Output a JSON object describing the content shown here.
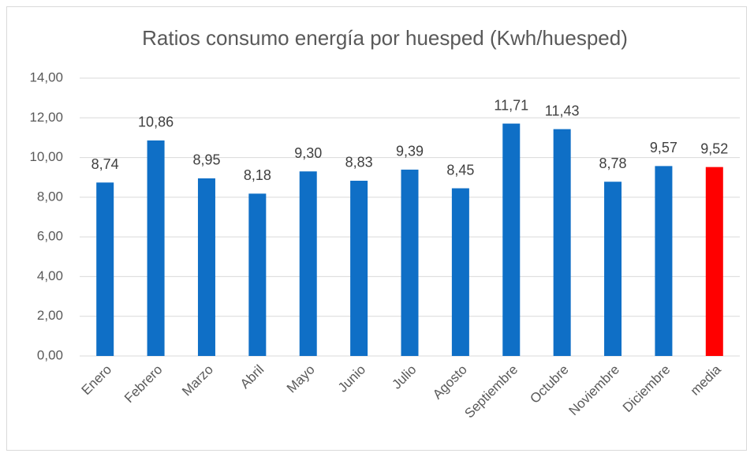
{
  "chart_data": {
    "type": "bar",
    "title": "Ratios consumo energía por huesped (Kwh/huesped)",
    "categories": [
      "Enero",
      "Febrero",
      "Marzo",
      "Abril",
      "Mayo",
      "Junio",
      "Julio",
      "Agosto",
      "Septiembre",
      "Octubre",
      "Noviembre",
      "Diciembre",
      "media"
    ],
    "values": [
      8.74,
      10.86,
      8.95,
      8.18,
      9.3,
      8.83,
      9.39,
      8.45,
      11.71,
      11.43,
      8.78,
      9.57,
      9.52
    ],
    "value_labels": [
      "8,74",
      "10,86",
      "8,95",
      "8,18",
      "9,30",
      "8,83",
      "9,39",
      "8,45",
      "11,71",
      "11,43",
      "8,78",
      "9,57",
      "9,52"
    ],
    "colors": [
      "#0f6fc6",
      "#0f6fc6",
      "#0f6fc6",
      "#0f6fc6",
      "#0f6fc6",
      "#0f6fc6",
      "#0f6fc6",
      "#0f6fc6",
      "#0f6fc6",
      "#0f6fc6",
      "#0f6fc6",
      "#0f6fc6",
      "#ff0000"
    ],
    "ylim": [
      0,
      14
    ],
    "yticks": [
      {
        "value": 0,
        "label": "0,00"
      },
      {
        "value": 2,
        "label": "2,00"
      },
      {
        "value": 4,
        "label": "4,00"
      },
      {
        "value": 6,
        "label": "6,00"
      },
      {
        "value": 8,
        "label": "8,00"
      },
      {
        "value": 10,
        "label": "10,00"
      },
      {
        "value": 12,
        "label": "12,00"
      },
      {
        "value": 14,
        "label": "14,00"
      }
    ],
    "grid": true
  }
}
